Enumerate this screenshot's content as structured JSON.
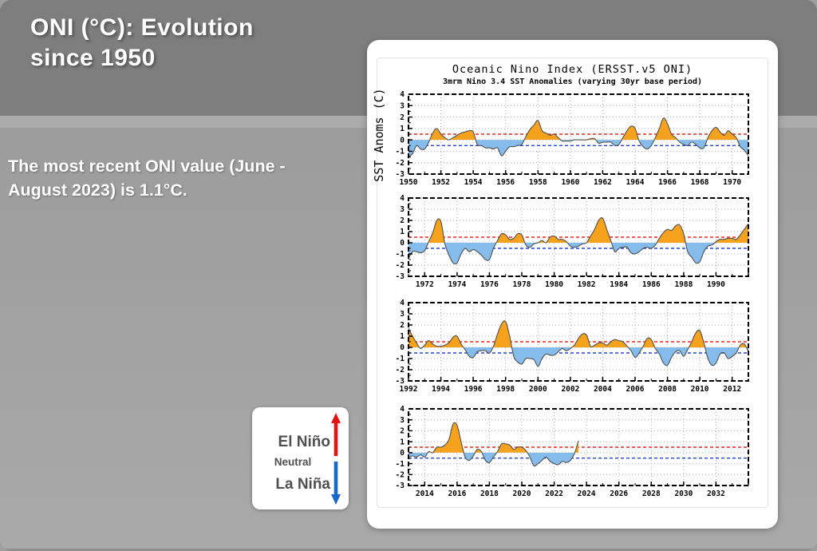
{
  "slide": {
    "title_lines": [
      "ONI (°C): Evolution",
      "since 1950"
    ],
    "body_lines": [
      "The most recent ONI value (June -",
      "August 2023) is 1.1°C."
    ],
    "header_color": "#7e7e7e",
    "content_color": "#a2a2a2"
  },
  "legend": {
    "items": [
      {
        "label": "El Niño",
        "arrow": "up-arrow",
        "color": "#e21414"
      },
      {
        "label": "Neutral"
      },
      {
        "label": "La Niña",
        "arrow": "down-arrow",
        "color": "#1668cc"
      }
    ]
  },
  "chart_data": {
    "type": "area",
    "title": "Oceanic Nino Index (ERSST.v5 ONI)",
    "subtitle": "3mrm Nino 3.4 SST Anomalies (varying 30yr base period)",
    "ylabel": "SST Anoms (C)",
    "ylim": [
      -3,
      4
    ],
    "yticks": [
      -3,
      -2,
      -1,
      0,
      1,
      2,
      3,
      4
    ],
    "el_nino_threshold": 0.5,
    "la_nina_threshold": -0.5,
    "grid": "dotted",
    "colors": {
      "positive_fill": "#f6a21d",
      "negative_fill": "#85bcec",
      "line": "#4f4f4f",
      "threshold_pos": "#e8281e",
      "threshold_neg": "#2545cf",
      "grid": "#a8a8a8",
      "frame": "#000000"
    },
    "panels": [
      {
        "x_start": 1950,
        "x_end": 1971,
        "x_step": 0.25,
        "xtick_labels": [
          1950,
          1952,
          1954,
          1956,
          1958,
          1960,
          1962,
          1964,
          1966,
          1968,
          1970
        ],
        "values": [
          -1.5,
          -1.2,
          -0.5,
          -0.8,
          -0.8,
          -0.2,
          0.6,
          1.0,
          0.5,
          0.2,
          0.0,
          0.2,
          0.4,
          0.6,
          0.7,
          0.8,
          0.7,
          -0.4,
          -0.5,
          -0.7,
          -0.7,
          -0.8,
          -0.7,
          -1.4,
          -1.0,
          -0.6,
          -0.6,
          -0.5,
          -0.4,
          0.3,
          0.9,
          1.3,
          1.7,
          0.8,
          0.6,
          0.4,
          0.5,
          0.2,
          -0.1,
          -0.1,
          -0.1,
          0.0,
          0.0,
          0.0,
          0.0,
          0.1,
          0.1,
          -0.3,
          -0.2,
          -0.2,
          -0.2,
          -0.5,
          -0.4,
          0.2,
          0.8,
          1.2,
          1.0,
          -0.1,
          -0.6,
          -0.8,
          -0.5,
          0.2,
          1.0,
          1.9,
          1.4,
          0.5,
          0.2,
          -0.2,
          -0.4,
          -0.5,
          -0.2,
          -0.4,
          -0.7,
          -0.7,
          0.2,
          0.8,
          1.1,
          0.7,
          0.4,
          0.8,
          0.5,
          0.2,
          -0.6,
          -0.9,
          -1.4
        ]
      },
      {
        "x_start": 1971,
        "x_end": 1992,
        "x_step": 0.25,
        "xtick_labels": [
          1972,
          1974,
          1976,
          1978,
          1980,
          1982,
          1984,
          1986,
          1988,
          1990
        ],
        "values": [
          -1.4,
          -0.8,
          -0.8,
          -0.9,
          -0.7,
          0.1,
          0.9,
          2.0,
          1.9,
          -0.1,
          -1.1,
          -1.8,
          -1.8,
          -1.0,
          -0.5,
          -0.8,
          -0.6,
          -0.8,
          -1.1,
          -1.5,
          -1.5,
          -0.5,
          0.2,
          0.8,
          0.7,
          0.3,
          0.4,
          0.8,
          0.7,
          -0.2,
          -0.4,
          -0.1,
          0.0,
          0.2,
          0.0,
          0.5,
          0.6,
          0.3,
          0.3,
          0.1,
          -0.3,
          -0.4,
          -0.3,
          -0.1,
          0.0,
          0.6,
          1.2,
          2.0,
          2.2,
          1.2,
          0.2,
          -0.8,
          -0.5,
          -0.4,
          -0.4,
          -0.9,
          -1.0,
          -0.8,
          -0.5,
          -0.4,
          -0.5,
          -0.2,
          0.4,
          0.9,
          1.2,
          1.1,
          1.5,
          1.6,
          0.8,
          -0.8,
          -1.3,
          -1.8,
          -1.7,
          -0.8,
          -0.3,
          -0.2,
          0.1,
          0.3,
          0.3,
          0.4,
          0.4,
          0.3,
          0.7,
          1.2,
          1.7
        ]
      },
      {
        "x_start": 1992,
        "x_end": 2013,
        "x_step": 0.25,
        "xtick_labels": [
          1992,
          1994,
          1996,
          1998,
          2000,
          2002,
          2004,
          2006,
          2008,
          2010,
          2012
        ],
        "values": [
          1.7,
          1.0,
          0.4,
          -0.1,
          0.2,
          0.6,
          0.3,
          0.1,
          0.1,
          0.2,
          0.4,
          0.9,
          1.0,
          0.3,
          -0.2,
          -0.8,
          -0.9,
          -0.4,
          -0.3,
          -0.3,
          -0.5,
          0.1,
          1.2,
          2.1,
          2.3,
          1.0,
          -0.8,
          -1.3,
          -1.5,
          -1.0,
          -1.0,
          -1.1,
          -1.7,
          -1.0,
          -0.6,
          -0.7,
          -0.7,
          -0.4,
          -0.1,
          -0.3,
          -0.1,
          0.2,
          0.8,
          1.2,
          1.1,
          0.1,
          0.2,
          0.4,
          0.4,
          0.2,
          0.5,
          0.7,
          0.6,
          0.5,
          0.1,
          -0.3,
          -0.9,
          -0.5,
          0.1,
          0.8,
          0.7,
          -0.1,
          -0.6,
          -1.4,
          -1.6,
          -0.9,
          -0.4,
          -0.3,
          -0.8,
          -0.2,
          0.5,
          1.3,
          1.5,
          0.4,
          -1.0,
          -1.6,
          -1.4,
          -0.6,
          -0.5,
          -1.0,
          -0.8,
          -0.5,
          0.2,
          0.3,
          -0.4
        ]
      },
      {
        "x_start": 2013,
        "x_end": 2034,
        "x_step": 0.25,
        "xtick_labels": [
          2014,
          2016,
          2018,
          2020,
          2022,
          2024,
          2026,
          2028,
          2030,
          2032
        ],
        "values": [
          -0.4,
          -0.3,
          -0.4,
          -0.2,
          -0.4,
          0.1,
          0.0,
          0.5,
          0.5,
          0.7,
          1.2,
          2.6,
          2.5,
          1.0,
          -0.4,
          -0.7,
          -0.3,
          0.3,
          0.1,
          -0.7,
          -0.9,
          -0.4,
          0.1,
          0.8,
          0.8,
          0.7,
          0.3,
          0.5,
          0.5,
          0.2,
          -0.4,
          -1.2,
          -1.0,
          -0.7,
          -0.4,
          -0.8,
          -1.0,
          -1.1,
          -0.8,
          -0.9,
          -0.7,
          -0.1,
          1.1
        ]
      }
    ]
  }
}
